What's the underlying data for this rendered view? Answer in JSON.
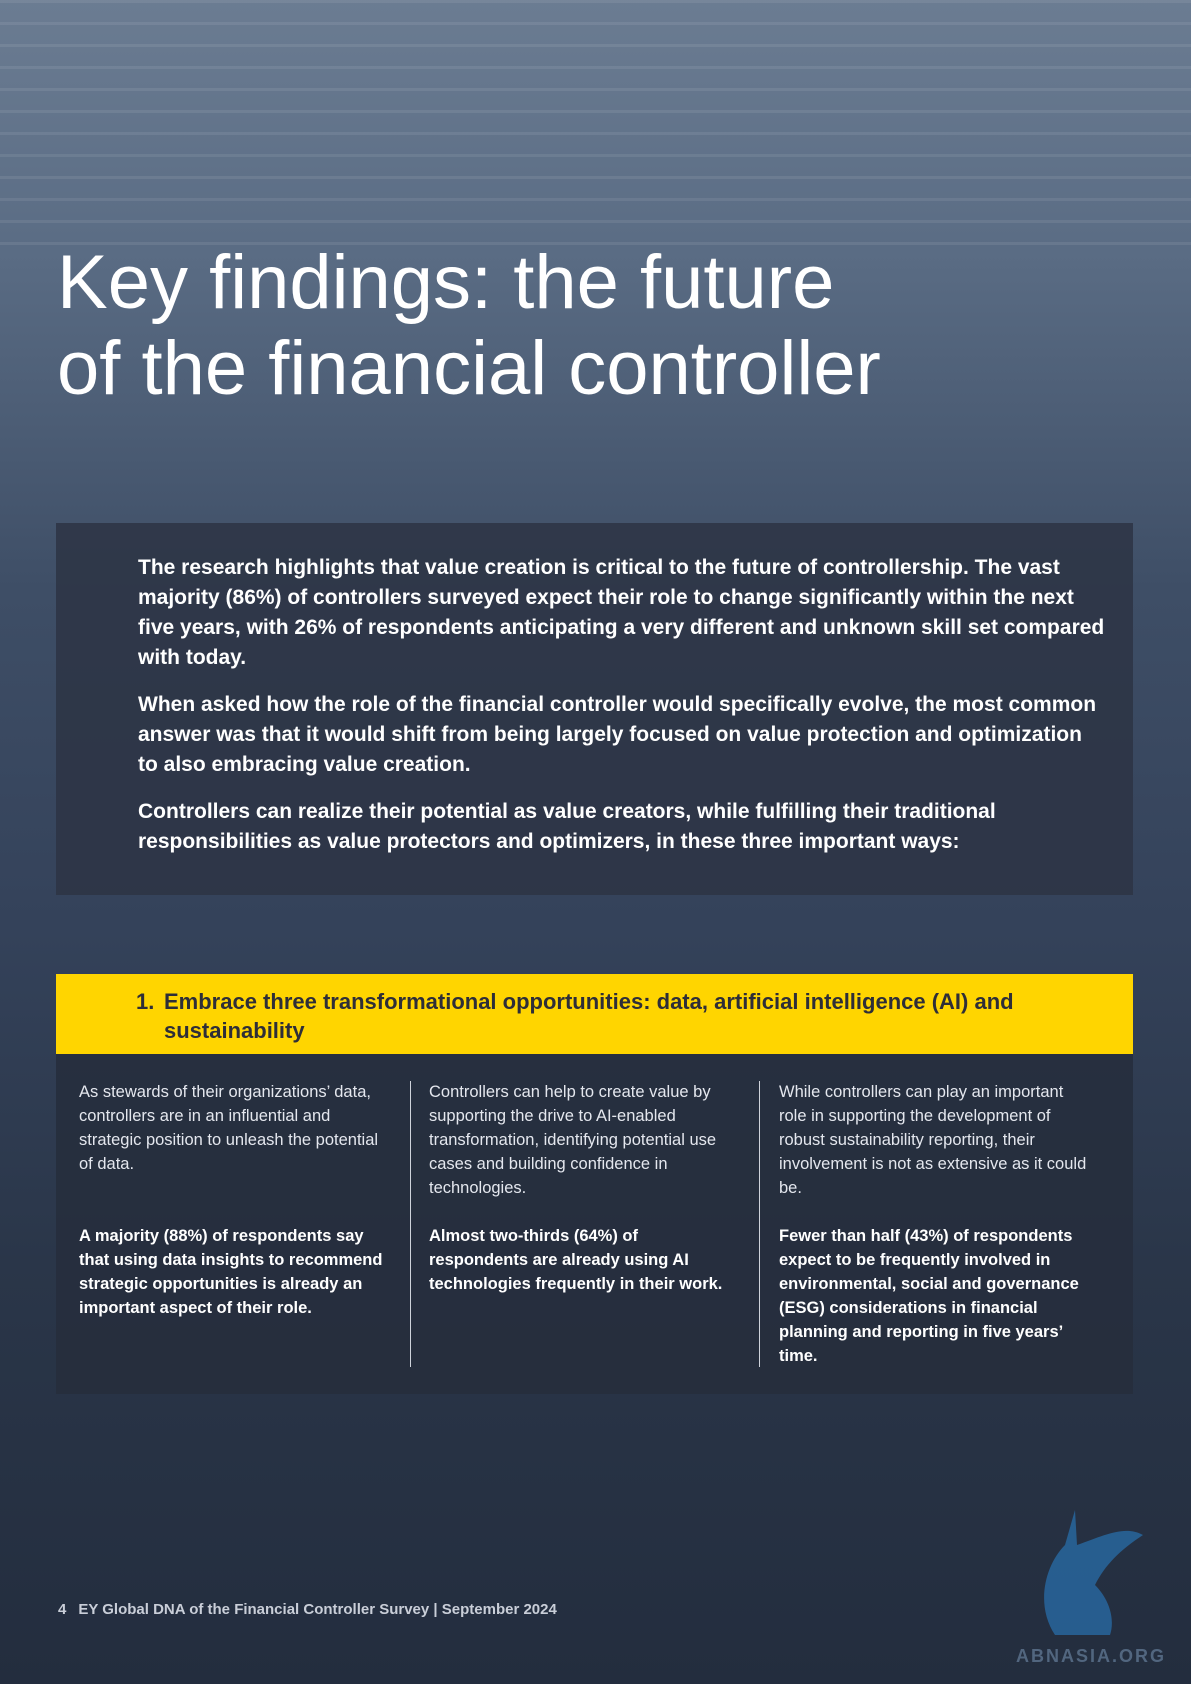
{
  "page": {
    "title_lines": [
      "Key findings: the future",
      "of the financial controller"
    ],
    "intro": [
      "The research highlights that value creation is critical to the future of controllership. The vast majority (86%) of controllers surveyed expect their role to change significantly within the next five years, with 26% of respondents anticipating a very different and unknown skill set compared with today.",
      "When asked how the role of the financial controller would specifically evolve, the most common answer was that it would shift from being largely focused on value protection and optimization to also embracing value creation.",
      "Controllers can realize their potential as value creators, while fulfilling their traditional responsibilities as value protectors and optimizers, in these three important ways:"
    ],
    "section": {
      "number": "1.",
      "heading": "Embrace three transformational opportunities: data, artificial intelligence (AI) and sustainability",
      "columns": [
        {
          "text": "As stewards of their organizations’ data, controllers are in an influential and strategic position to unleash the potential of data.",
          "highlight": "A majority (88%) of respondents say that using data insights to recommend strategic opportunities is already an important aspect of their role."
        },
        {
          "text": "Controllers can help to create value by supporting the drive to AI-enabled transformation, identifying potential use cases and building confidence in technologies.",
          "highlight": "Almost two-thirds (64%) of respondents are already using AI technologies frequently in their work."
        },
        {
          "text": "While controllers can play an important role in supporting the development of robust sustainability reporting, their involvement is not as extensive as it could be.",
          "highlight": "Fewer than half (43%) of respondents expect to be frequently involved in environmental, social and governance (ESG) considerations in financial planning and reporting in five years’ time."
        }
      ]
    },
    "footer": {
      "page_number": "4",
      "text": "EY Global DNA of the Financial Controller Survey | September 2024"
    },
    "watermark": "ABNASIA.ORG"
  }
}
